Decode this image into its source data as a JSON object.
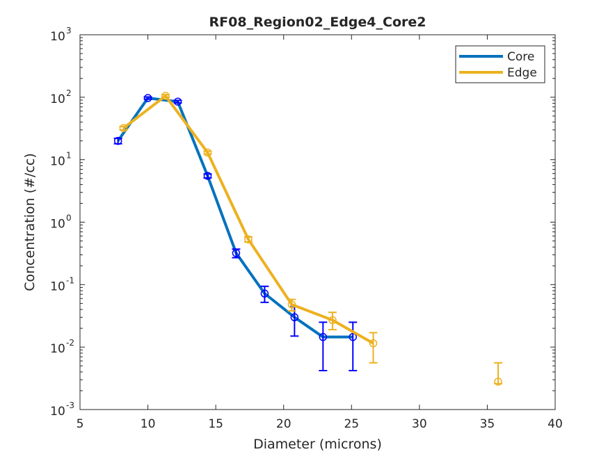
{
  "chart_data": {
    "type": "line",
    "title": "RF08_Region02_Edge4_Core2",
    "xlabel": "Diameter (microns)",
    "ylabel": "Concentration (#/cc)",
    "xlim": [
      5,
      40
    ],
    "ylim": [
      0.001,
      1000
    ],
    "yscale": "log",
    "xticks": [
      5,
      10,
      15,
      20,
      25,
      30,
      35,
      40
    ],
    "xtick_labels": [
      "5",
      "10",
      "15",
      "20",
      "25",
      "30",
      "35",
      "40"
    ],
    "yticks": [
      {
        "value": 0.001,
        "base": "10",
        "exp": "-3"
      },
      {
        "value": 0.01,
        "base": "10",
        "exp": "-2"
      },
      {
        "value": 0.1,
        "base": "10",
        "exp": "-1"
      },
      {
        "value": 1,
        "base": "10",
        "exp": "0"
      },
      {
        "value": 10,
        "base": "10",
        "exp": "1"
      },
      {
        "value": 100,
        "base": "10",
        "exp": "2"
      },
      {
        "value": 1000,
        "base": "10",
        "exp": "3"
      }
    ],
    "grid": false,
    "legend_position": "top-right",
    "series": [
      {
        "name": "Core",
        "color": "#0072bd",
        "marker_color": "#0000ff",
        "x": [
          7.8,
          10.0,
          12.2,
          14.4,
          16.5,
          18.6,
          20.8,
          22.9,
          25.1
        ],
        "y": [
          20,
          97,
          85,
          5.5,
          0.32,
          0.072,
          0.03,
          0.0145,
          0.0145
        ],
        "err_low": [
          18,
          93,
          81,
          5.1,
          0.27,
          0.052,
          0.015,
          0.0042,
          0.0042
        ],
        "err_high": [
          22,
          101,
          89,
          5.9,
          0.37,
          0.094,
          0.045,
          0.025,
          0.025
        ]
      },
      {
        "name": "Edge",
        "color": "#edb120",
        "marker_color": "#edb120",
        "x": [
          8.2,
          11.3,
          14.4,
          17.4,
          20.6,
          23.6,
          26.6
        ],
        "y": [
          32,
          105,
          13,
          0.53,
          0.048,
          0.027,
          0.0115
        ],
        "err_low": [
          30,
          100,
          12.3,
          0.48,
          0.038,
          0.019,
          0.0056
        ],
        "err_high": [
          34,
          110,
          13.7,
          0.58,
          0.058,
          0.036,
          0.017
        ]
      },
      {
        "name": "",
        "legend": false,
        "line": false,
        "color": "#edb120",
        "marker_color": "#edb120",
        "x": [
          35.8
        ],
        "y": [
          0.0028
        ],
        "err_low": [
          0.0026
        ],
        "err_high": [
          0.0056
        ]
      }
    ],
    "legend_entries": [
      "Core",
      "Edge"
    ]
  }
}
